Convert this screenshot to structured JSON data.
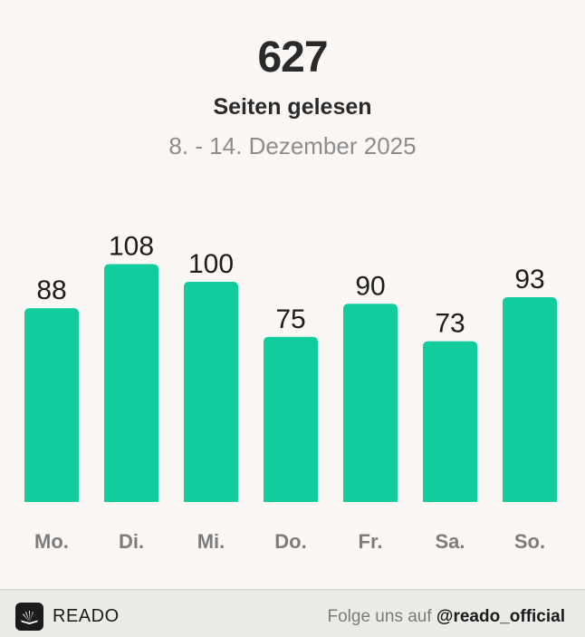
{
  "header": {
    "total": "627",
    "subtitle": "Seiten gelesen",
    "date_range": "8. - 14. Dezember 2025"
  },
  "chart_data": {
    "type": "bar",
    "categories": [
      "Mo.",
      "Di.",
      "Mi.",
      "Do.",
      "Fr.",
      "Sa.",
      "So."
    ],
    "values": [
      88,
      108,
      100,
      75,
      90,
      73,
      93
    ],
    "bar_color": "#13cc9e",
    "title": "",
    "xlabel": "",
    "ylabel": "",
    "grid": false,
    "legend": "none"
  },
  "footer": {
    "logo_icon": "reado-logo-icon",
    "brand": "READO",
    "follow_text": "Folge uns auf ",
    "handle": "@reado_official"
  },
  "colors": {
    "background": "#faf7f4",
    "footer_background": "#ebebe8",
    "text_dark": "#2a2a2a",
    "text_muted": "#8d8d8d"
  }
}
